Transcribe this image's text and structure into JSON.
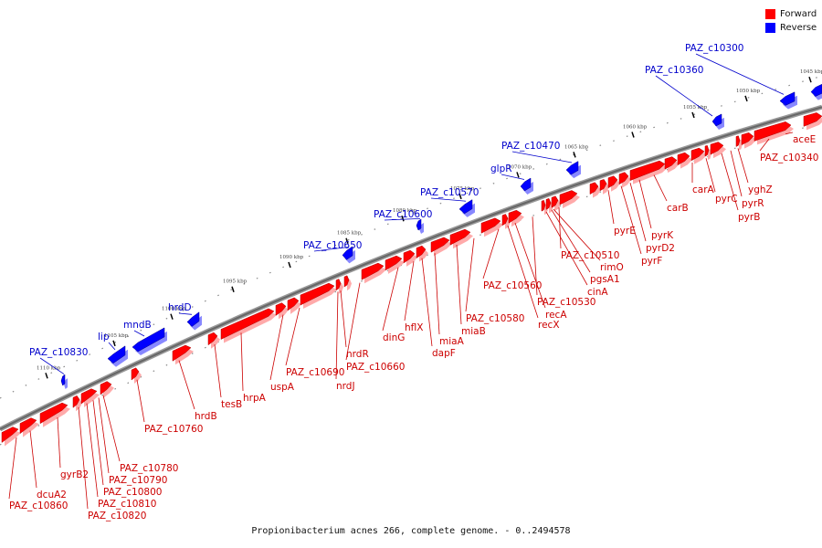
{
  "legend": [
    {
      "label": "Forward",
      "color": "#ff0000"
    },
    {
      "label": "Reverse",
      "color": "#0000ff"
    }
  ],
  "caption": "Propionibacterium acnes 266, complete genome. - 0..2494578",
  "colors": {
    "forward": "#ff0000",
    "reverse": "#0000ff",
    "backbone": "#666666"
  },
  "ticks": [
    "1045 kbp",
    "1050 kbp",
    "1055 kbp",
    "1060 kbp",
    "1065 kbp",
    "1070 kbp",
    "1075 kbp",
    "1080 kbp",
    "1085 kbp",
    "1090 kbp",
    "1095 kbp",
    "1100 kbp",
    "1105 kbp",
    "1110 kbp"
  ],
  "forward_labels": [
    "aceE",
    "PAZ_c10340",
    "yghZ",
    "pyrR",
    "pyrB",
    "pyrC",
    "carA",
    "carB",
    "pyrK",
    "pyrD2",
    "pyrE",
    "pyrF",
    "PAZ_c10510",
    "rimO",
    "pgsA1",
    "cinA",
    "PAZ_c10530",
    "PAZ_c10560",
    "recA",
    "recX",
    "PAZ_c10580",
    "miaB",
    "miaA",
    "dapF",
    "hflX",
    "dinG",
    "PAZ_c10660",
    "nrdR",
    "nrdJ",
    "PAZ_c10690",
    "uspA",
    "hrpA",
    "tesB",
    "hrdB",
    "PAZ_c10760",
    "PAZ_c10780",
    "PAZ_c10790",
    "PAZ_c10800",
    "PAZ_c10810",
    "PAZ_c10820",
    "gyrB2",
    "dcuA2",
    "PAZ_c10860"
  ],
  "reverse_labels": [
    "PAZ_c10300",
    "PAZ_c10360",
    "PAZ_c10470",
    "glpR",
    "PAZ_c10570",
    "PAZ_c10600",
    "PAZ_c10650",
    "hrdD",
    "mndB",
    "lip",
    "PAZ_c10830"
  ]
}
